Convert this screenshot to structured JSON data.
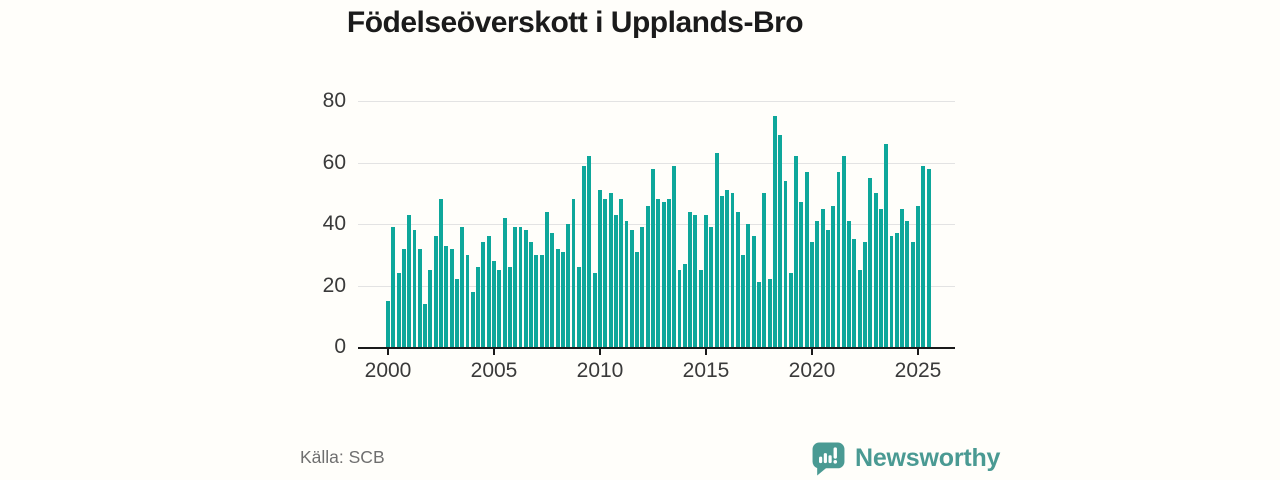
{
  "page": {
    "background": "#fffefa",
    "title": "Födelseöverskott i Upplands-Bro",
    "title_color": "#1b1b1b"
  },
  "footer": {
    "source": "Källa: SCB",
    "source_color": "#6f6f6f"
  },
  "brand": {
    "name": "Newsworthy",
    "logo_color": "#4a9a93",
    "logo_glyph_color": "#ffffff",
    "icon": "newsworthy-speech-bubble-chart-icon"
  },
  "colors": {
    "bar": "#0ea79b",
    "grid": "#e3e3e3",
    "axis": "#1a1a1a",
    "tick_label": "#3a3a3a"
  },
  "chart_data": {
    "type": "bar",
    "title": "Födelseöverskott i Upplands-Bro",
    "frequency": "quarterly",
    "period_start": "2000-Q1",
    "period_end": "2025-Q3",
    "ylim": [
      0,
      80
    ],
    "y_ticks": [
      0,
      20,
      40,
      60,
      80
    ],
    "x_tick_years": [
      2000,
      2005,
      2010,
      2015,
      2020,
      2025
    ],
    "x_tick_labels": [
      "2000",
      "2005",
      "2010",
      "2015",
      "2020",
      "2025"
    ],
    "grid": true,
    "legend": false,
    "values": [
      15,
      39,
      24,
      32,
      43,
      38,
      32,
      14,
      25,
      36,
      48,
      33,
      32,
      22,
      39,
      30,
      18,
      26,
      34,
      36,
      28,
      25,
      42,
      26,
      39,
      39,
      38,
      34,
      30,
      30,
      44,
      37,
      32,
      31,
      40,
      48,
      26,
      59,
      62,
      24,
      51,
      48,
      50,
      43,
      48,
      41,
      38,
      31,
      39,
      46,
      58,
      48,
      47,
      48,
      59,
      25,
      27,
      44,
      43,
      25,
      43,
      39,
      63,
      49,
      51,
      50,
      44,
      30,
      40,
      36,
      21,
      50,
      22,
      75,
      69,
      54,
      24,
      62,
      47,
      57,
      34,
      41,
      45,
      38,
      46,
      57,
      62,
      41,
      35,
      25,
      34,
      55,
      50,
      45,
      66,
      36,
      37,
      45,
      41,
      34,
      46,
      59,
      58
    ]
  }
}
